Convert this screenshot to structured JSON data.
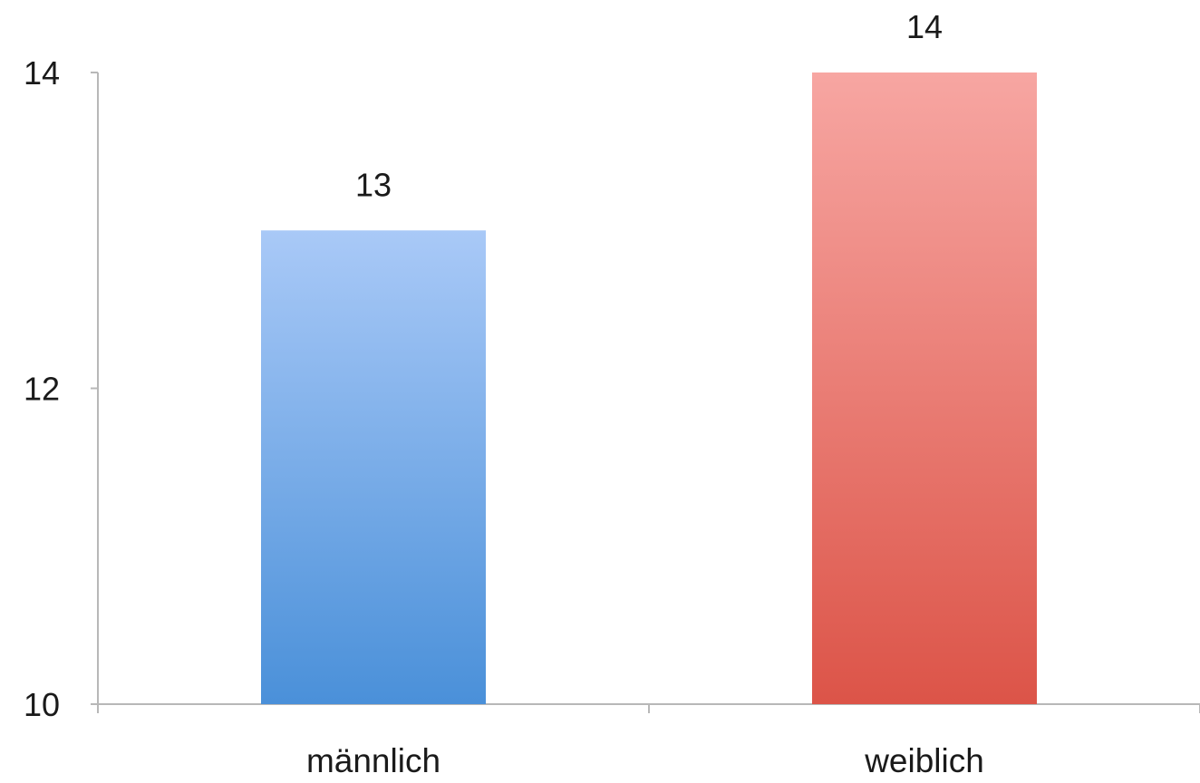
{
  "chart_data": {
    "type": "bar",
    "categories": [
      "männlich",
      "weiblich"
    ],
    "values": [
      13,
      14
    ],
    "data_labels": [
      "13",
      "14"
    ],
    "ylim": [
      10,
      14
    ],
    "yticks": [
      10,
      12,
      14
    ],
    "ytick_labels": [
      "10",
      "12",
      "14"
    ],
    "title": "",
    "xlabel": "",
    "ylabel": "",
    "grid": false,
    "legend": "none",
    "colors": {
      "männlich": {
        "top": "#a9c9f7",
        "bottom": "#4a90d9"
      },
      "weiblich": {
        "top": "#f7a6a2",
        "bottom": "#dc5448"
      }
    },
    "axis_color": "#b8b8b8"
  }
}
